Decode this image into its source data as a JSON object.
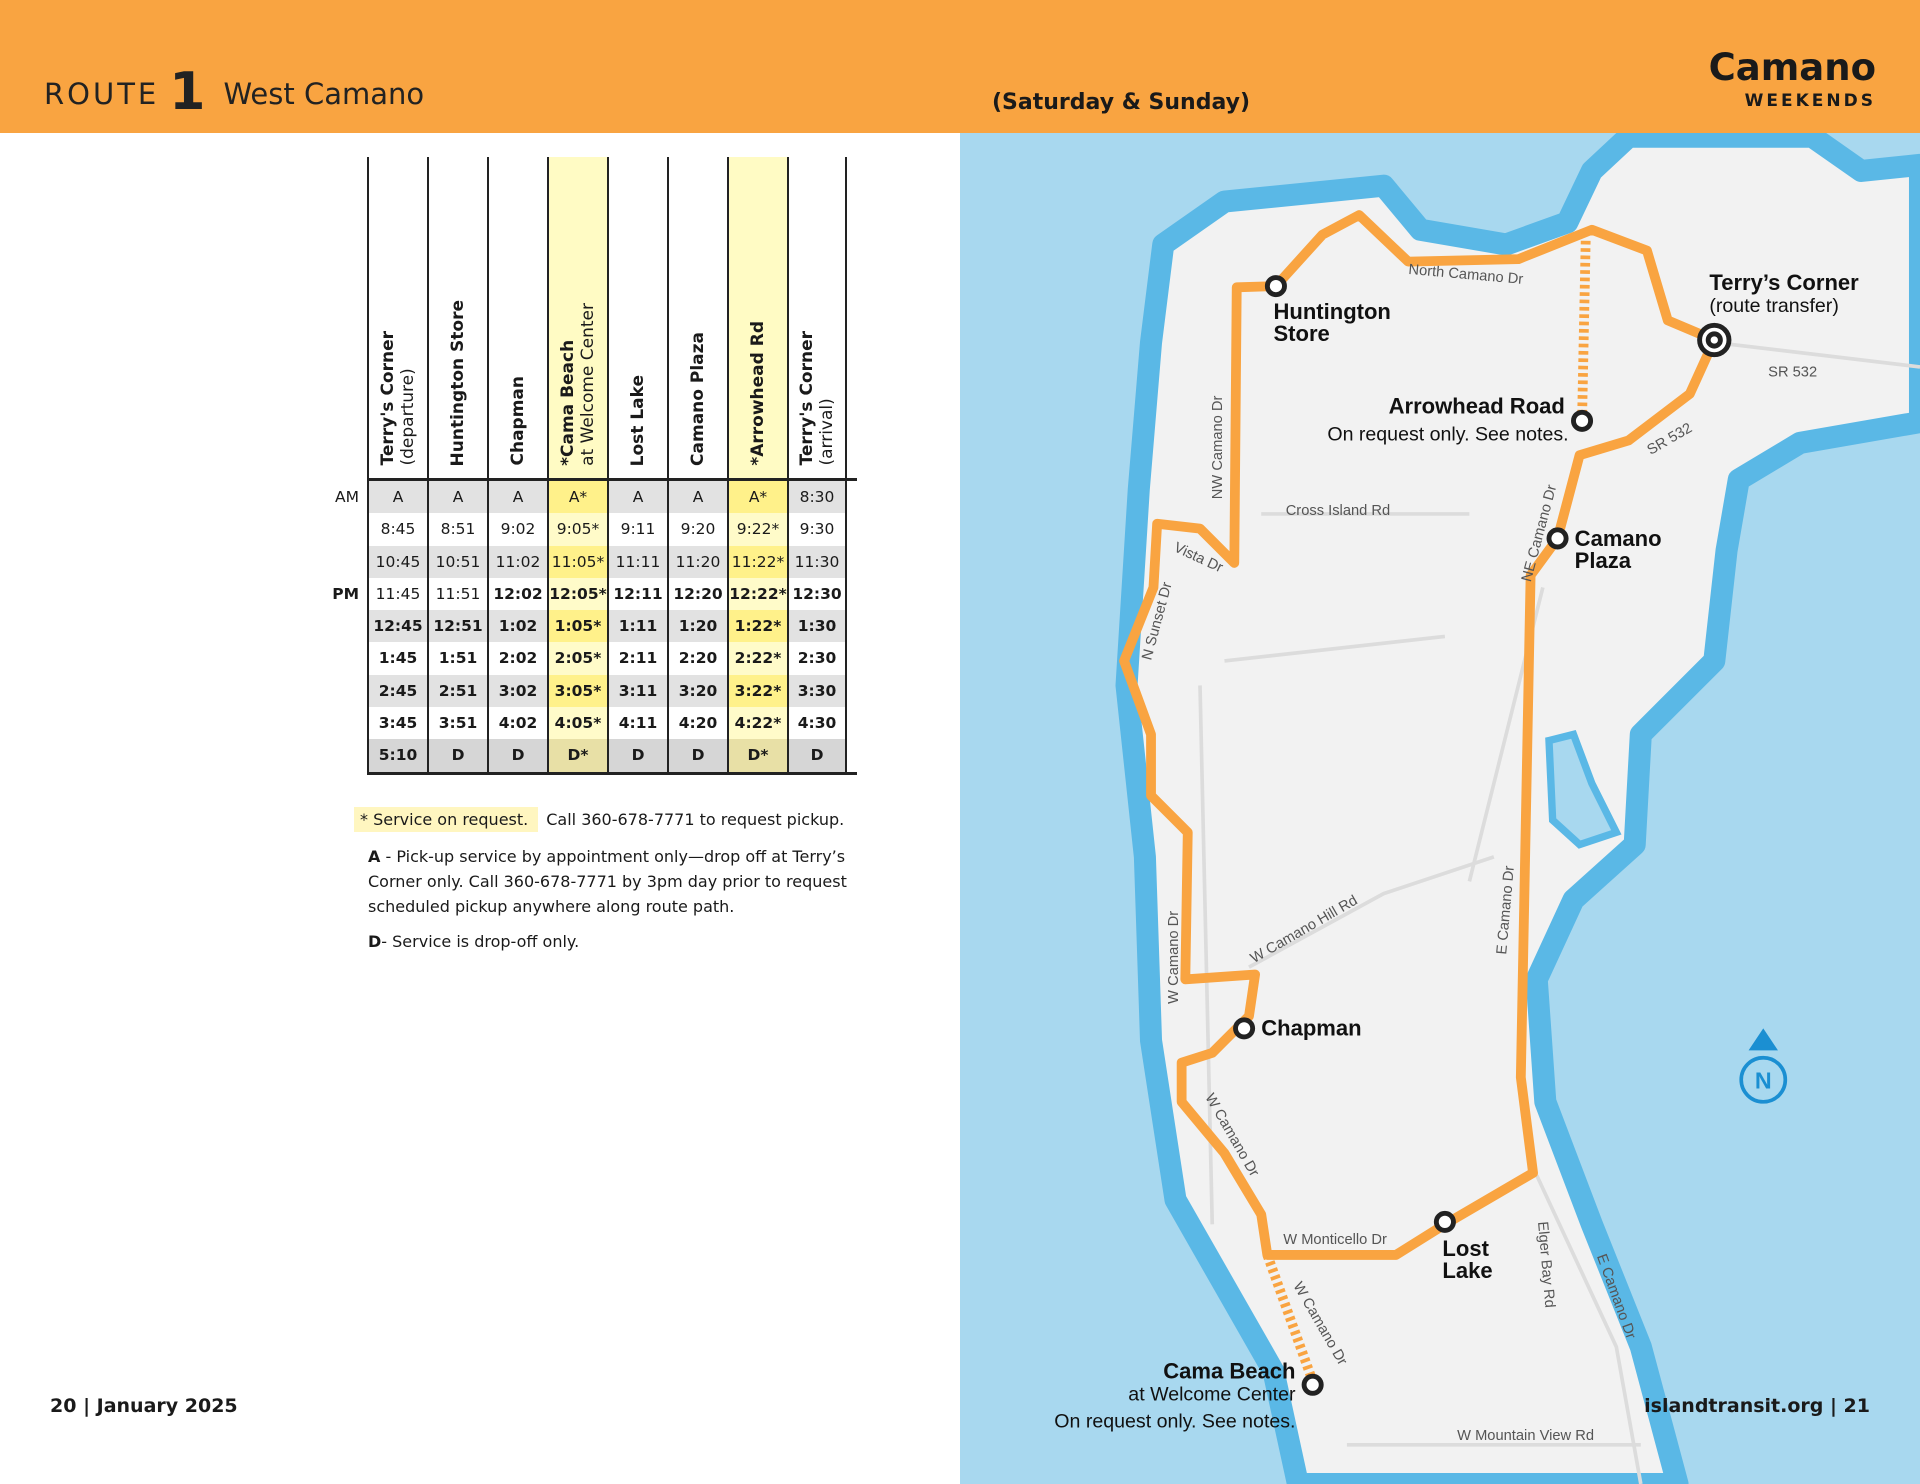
{
  "header": {
    "route_word": "ROUTE",
    "route_number": "1",
    "route_name": "West Camano",
    "days": "(Saturday & Sunday)",
    "brand_title": "Camano",
    "brand_sub": "WEEKENDS"
  },
  "colors": {
    "header": "#f9a441",
    "route": "#f9a441",
    "water": "#a8d8ef",
    "highlight": "#fff18a"
  },
  "table": {
    "columns": [
      {
        "title": "Terry's Corner",
        "sub": "(departure)",
        "highlight": false
      },
      {
        "title": "Huntington Store",
        "sub": "",
        "highlight": false
      },
      {
        "title": "Chapman",
        "sub": "",
        "highlight": false
      },
      {
        "title": "*Cama Beach",
        "sub": "at Welcome Center",
        "highlight": true
      },
      {
        "title": "Lost Lake",
        "sub": "",
        "highlight": false
      },
      {
        "title": "Camano Plaza",
        "sub": "",
        "highlight": false
      },
      {
        "title": "*Arrowhead Rd",
        "sub": "",
        "highlight": true
      },
      {
        "title": "Terry's Corner",
        "sub": "(arrival)",
        "highlight": false
      }
    ],
    "rows": [
      {
        "period": "AM",
        "cells": [
          "A",
          "A",
          "A",
          "A*",
          "A",
          "A",
          "A*",
          "8:30"
        ]
      },
      {
        "period": "",
        "cells": [
          "8:45",
          "8:51",
          "9:02",
          "9:05*",
          "9:11",
          "9:20",
          "9:22*",
          "9:30"
        ]
      },
      {
        "period": "",
        "cells": [
          "10:45",
          "10:51",
          "11:02",
          "11:05*",
          "11:11",
          "11:20",
          "11:22*",
          "11:30"
        ]
      },
      {
        "period": "PM",
        "cells": [
          "11:45",
          "11:51",
          "12:02",
          "12:05*",
          "12:11",
          "12:20",
          "12:22*",
          "12:30"
        ]
      },
      {
        "period": "",
        "cells": [
          "12:45",
          "12:51",
          "1:02",
          "1:05*",
          "1:11",
          "1:20",
          "1:22*",
          "1:30"
        ]
      },
      {
        "period": "",
        "cells": [
          "1:45",
          "1:51",
          "2:02",
          "2:05*",
          "2:11",
          "2:20",
          "2:22*",
          "2:30"
        ]
      },
      {
        "period": "",
        "cells": [
          "2:45",
          "2:51",
          "3:02",
          "3:05*",
          "3:11",
          "3:20",
          "3:22*",
          "3:30"
        ]
      },
      {
        "period": "",
        "cells": [
          "3:45",
          "3:51",
          "4:02",
          "4:05*",
          "4:11",
          "4:20",
          "4:22*",
          "4:30"
        ]
      },
      {
        "period": "",
        "cells": [
          "5:10",
          "D",
          "D",
          "D*",
          "D",
          "D",
          "D*",
          "D"
        ]
      }
    ]
  },
  "notes": {
    "star_label": "* Service on request.",
    "star_text": "Call 360-678-7771 to request pickup.",
    "a_key": "A",
    "a_text": " - Pick-up service by appointment only—drop off at Terry’s Corner only. Call 360-678-7771 by 3pm day prior to request scheduled pickup anywhere along route path.",
    "d_key": "D",
    "d_text": "- Service is drop-off only."
  },
  "footer": {
    "left_page": "20",
    "left_date": "January 2025",
    "right_site": "islandtransit.org",
    "right_page": "21"
  },
  "map": {
    "stops": {
      "terrys_title": "Terry’s Corner",
      "terrys_sub": "(route transfer)",
      "huntington_1": "Huntington",
      "huntington_2": "Store",
      "arrowhead_title": "Arrowhead Road",
      "arrowhead_note": "On request only. See notes.",
      "plaza_1": "Camano",
      "plaza_2": "Plaza",
      "chapman": "Chapman",
      "lost_1": "Lost",
      "lost_2": "Lake",
      "cama_title": "Cama Beach",
      "cama_sub": "at Welcome Center",
      "cama_note": "On request only. See notes."
    },
    "roads": {
      "north_camano": "North Camano Dr",
      "sr532_a": "SR 532",
      "sr532_b": "SR 532",
      "nw_camano": "NW Camano Dr",
      "cross_island": "Cross Island Rd",
      "ne_camano": "NE Camano Dr",
      "vista": "Vista Dr",
      "sunset": "N Sunset Dr",
      "w_camano_hill": "W Camano Hill Rd",
      "e_camano": "E Camano Dr",
      "w_camano_1": "W Camano Dr",
      "w_camano_2": "W Camano Dr",
      "w_camano_3": "W Camano Dr",
      "monticello": "W Monticello Dr",
      "elger": "Elger Bay Rd",
      "e_camano_2": "E Camano Dr",
      "mountain_view": "W Mountain View Rd"
    },
    "north_label": "N"
  }
}
